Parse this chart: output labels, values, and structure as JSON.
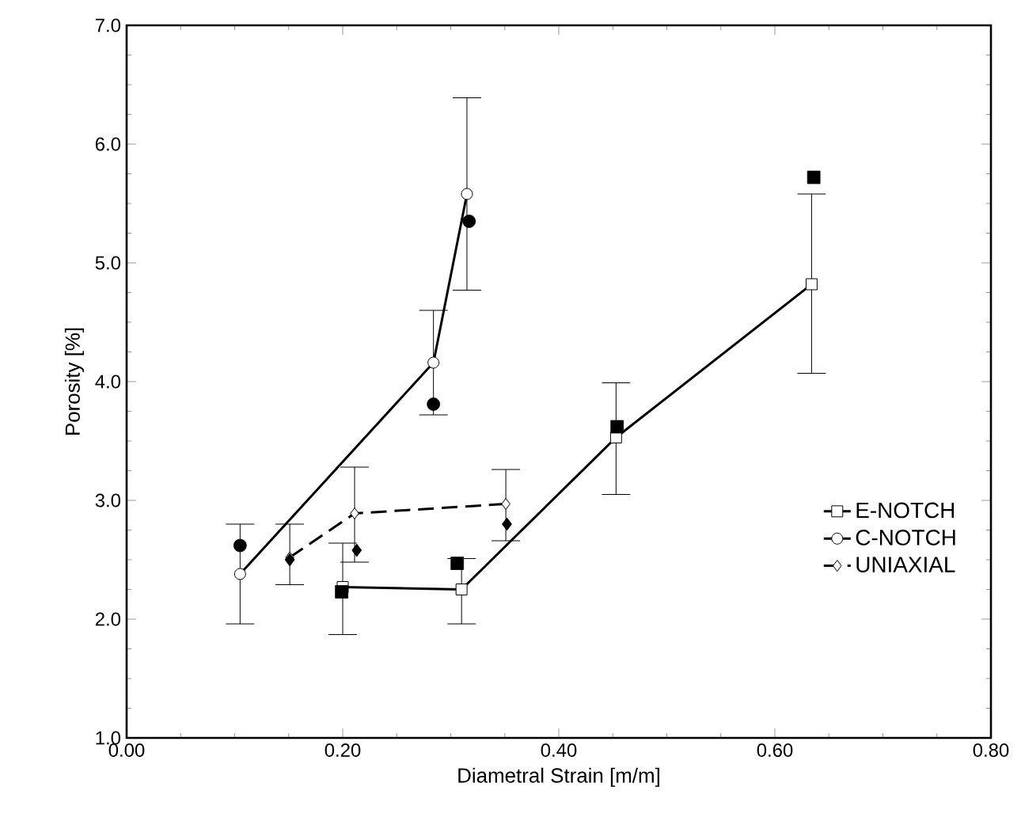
{
  "chart_data": {
    "type": "line",
    "xlabel": "Diametral Strain [m/m]",
    "ylabel": "Porosity [%]",
    "xlim": [
      0,
      0.8
    ],
    "ylim": [
      1,
      7
    ],
    "xticks": [
      {
        "value": 0,
        "label": "0.00"
      },
      {
        "value": 0.2,
        "label": "0.20"
      },
      {
        "value": 0.4,
        "label": "0.40"
      },
      {
        "value": 0.6,
        "label": "0.60"
      },
      {
        "value": 0.8,
        "label": "0.80"
      }
    ],
    "yticks": [
      {
        "value": 1,
        "label": "1.0"
      },
      {
        "value": 2,
        "label": "2.0"
      },
      {
        "value": 3,
        "label": "3.0"
      },
      {
        "value": 4,
        "label": "4.0"
      },
      {
        "value": 5,
        "label": "5.0"
      },
      {
        "value": 6,
        "label": "6.0"
      },
      {
        "value": 7,
        "label": "7.0"
      }
    ],
    "legend": "bottom right",
    "grid": false,
    "series": [
      {
        "name": "E-NOTCH",
        "color": "#000000",
        "marker": "square",
        "line_style": "solid",
        "x": [
          0.2,
          0.31,
          0.453,
          0.634
        ],
        "values": [
          2.27,
          2.25,
          3.53,
          4.82
        ],
        "errors": [
          [
            1.87,
            2.64
          ],
          [
            1.96,
            2.51
          ],
          [
            3.05,
            3.99
          ],
          [
            4.07,
            5.58
          ]
        ]
      },
      {
        "name": "C-NOTCH",
        "color": "#000000",
        "marker": "circle",
        "line_style": "solid",
        "x": [
          0.105,
          0.284,
          0.315
        ],
        "values": [
          2.38,
          4.16,
          5.58
        ],
        "errors": [
          [
            1.96,
            2.8
          ],
          [
            3.72,
            4.6
          ],
          [
            4.77,
            6.39
          ]
        ]
      },
      {
        "name": "UNIAXIAL",
        "color": "#000000",
        "marker": "diamond",
        "line_style": "dashed",
        "x": [
          0.151,
          0.211,
          0.351
        ],
        "values": [
          2.52,
          2.89,
          2.97
        ],
        "errors": [
          [
            2.29,
            2.8
          ],
          [
            2.48,
            3.28
          ],
          [
            2.66,
            3.26
          ]
        ]
      },
      {
        "type": "scatter",
        "color": "#000000",
        "marker": "square",
        "x": [
          0.199,
          0.306,
          0.454,
          0.636
        ],
        "values": [
          2.23,
          2.47,
          3.62,
          5.72
        ]
      },
      {
        "type": "scatter",
        "color": "#000000",
        "marker": "circle",
        "x": [
          0.105,
          0.284,
          0.317
        ],
        "values": [
          2.62,
          3.81,
          5.35
        ]
      },
      {
        "type": "scatter",
        "color": "#000000",
        "marker": "diamond",
        "x": [
          0.151,
          0.213,
          0.352
        ],
        "values": [
          2.5,
          2.58,
          2.8
        ]
      }
    ]
  }
}
